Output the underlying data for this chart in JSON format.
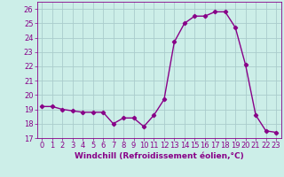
{
  "x": [
    0,
    1,
    2,
    3,
    4,
    5,
    6,
    7,
    8,
    9,
    10,
    11,
    12,
    13,
    14,
    15,
    16,
    17,
    18,
    19,
    20,
    21,
    22,
    23
  ],
  "y": [
    19.2,
    19.2,
    19.0,
    18.9,
    18.8,
    18.8,
    18.8,
    18.0,
    18.4,
    18.4,
    17.8,
    18.6,
    19.7,
    23.7,
    25.0,
    25.5,
    25.5,
    25.8,
    25.8,
    24.7,
    22.1,
    18.6,
    17.5,
    17.4
  ],
  "line_color": "#880088",
  "marker": "D",
  "markersize": 2.2,
  "linewidth": 1.0,
  "xlabel": "Windchill (Refroidissement éolien,°C)",
  "ylabel_ticks": [
    17,
    18,
    19,
    20,
    21,
    22,
    23,
    24,
    25,
    26
  ],
  "xlim": [
    -0.5,
    23.5
  ],
  "ylim": [
    17,
    26.5
  ],
  "background_color": "#cceee8",
  "grid_color": "#aacccc",
  "xlabel_fontsize": 6.5,
  "tick_fontsize": 6.0
}
